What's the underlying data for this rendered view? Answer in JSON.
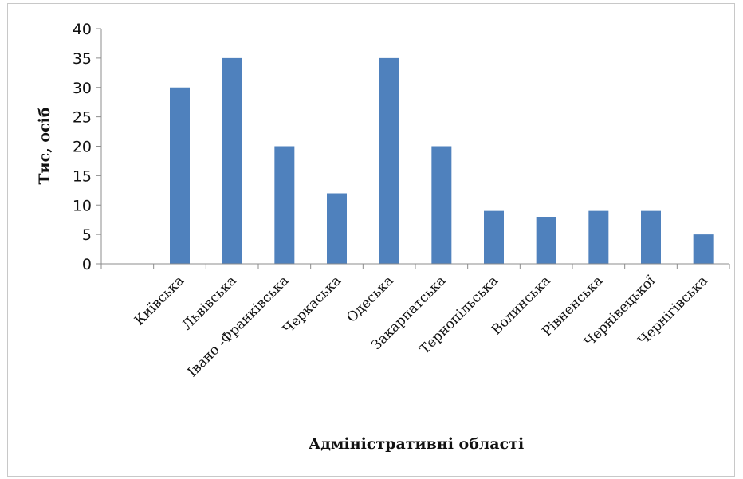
{
  "chart_data": {
    "type": "bar",
    "categories": [
      "Київська",
      "Львівська",
      "Івано -Франківська",
      "Черкаська",
      "Одеська",
      "Закарпатська",
      "Тернопільська",
      "Волинська",
      "Рівненська",
      "Чернівецької",
      "Чернігівська"
    ],
    "series": [
      {
        "values": [
          30,
          35,
          20,
          12,
          35,
          20,
          9,
          8,
          9,
          9,
          5
        ],
        "color": "#4f81bd"
      }
    ],
    "xlabel": "Адміністративні області",
    "ylabel": "Тис, осіб",
    "ylim": [
      0,
      40
    ],
    "yticks": [
      "0",
      "5",
      "10",
      "15",
      "20",
      "25",
      "30",
      "35",
      "40"
    ],
    "grid": false,
    "legend": "none"
  }
}
